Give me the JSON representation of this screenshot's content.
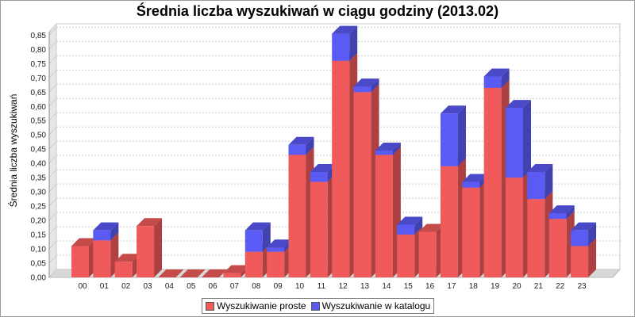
{
  "chart_data": {
    "type": "bar",
    "stacked": true,
    "three_d": true,
    "title": "Średnia liczba wyszukiwań w ciągu godziny (2013.02)",
    "xlabel": "",
    "ylabel": "Średnia liczba wyszukiwań",
    "ylim": [
      0,
      0.89
    ],
    "yticks": [
      "0,00",
      "0,05",
      "0,10",
      "0,15",
      "0,20",
      "0,25",
      "0,30",
      "0,35",
      "0,40",
      "0,45",
      "0,50",
      "0,55",
      "0,60",
      "0,65",
      "0,70",
      "0,75",
      "0,80",
      "0,85"
    ],
    "categories": [
      "00",
      "01",
      "02",
      "03",
      "04",
      "05",
      "06",
      "07",
      "08",
      "09",
      "10",
      "11",
      "12",
      "13",
      "14",
      "15",
      "16",
      "17",
      "18",
      "19",
      "20",
      "21",
      "22",
      "23"
    ],
    "series": [
      {
        "name": "Wyszukiwanie proste",
        "color": "#f05a5a",
        "values": [
          0.11,
          0.13,
          0.055,
          0.18,
          0.0,
          0.0,
          0.0,
          0.015,
          0.09,
          0.09,
          0.43,
          0.335,
          0.76,
          0.65,
          0.43,
          0.15,
          0.16,
          0.39,
          0.315,
          0.665,
          0.35,
          0.275,
          0.205,
          0.11
        ]
      },
      {
        "name": "Wyszukiwanie w katalogu",
        "color": "#5a5af5",
        "values": [
          0.0,
          0.035,
          0.0,
          0.0,
          0.0,
          0.0,
          0.0,
          0.0,
          0.075,
          0.015,
          0.035,
          0.035,
          0.095,
          0.02,
          0.015,
          0.035,
          0.0,
          0.185,
          0.02,
          0.04,
          0.245,
          0.095,
          0.02,
          0.055
        ]
      }
    ],
    "grid": true,
    "legend_position": "bottom"
  }
}
